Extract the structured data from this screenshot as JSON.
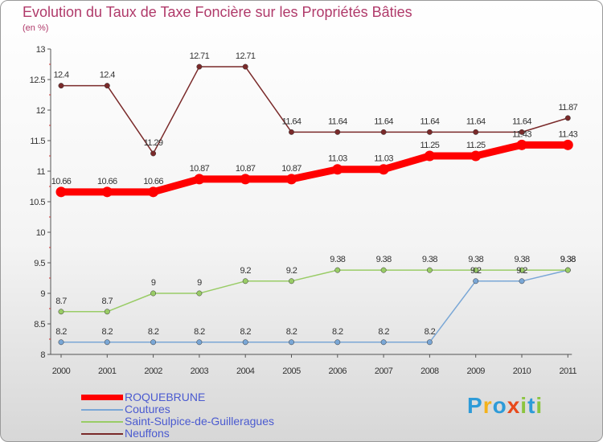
{
  "header": {
    "title": "Evolution du Taux de Taxe Foncière sur les Propriétés Bâties",
    "unit": "(en %)"
  },
  "logo": {
    "text": "Proxiti"
  },
  "chart_data": {
    "type": "line",
    "title": "Evolution du Taux de Taxe Foncière sur les Propriétés Bâties",
    "ylabel": "(en %)",
    "xlabel": "",
    "x": [
      "2000",
      "2001",
      "2002",
      "2003",
      "2004",
      "2005",
      "2006",
      "2007",
      "2008",
      "2009",
      "2010",
      "2011"
    ],
    "ylim": [
      8,
      13
    ],
    "yticks": [
      "8",
      "8.5",
      "9",
      "9.5",
      "10",
      "10.5",
      "11",
      "11.5",
      "12",
      "12.5",
      "13"
    ],
    "grid": false,
    "legend": "bottom-left",
    "series": [
      {
        "name": "ROQUEBRUNE",
        "color": "#ff0000",
        "values": [
          10.66,
          10.66,
          10.66,
          10.87,
          10.87,
          10.87,
          11.03,
          11.03,
          11.25,
          11.25,
          11.43,
          11.43
        ],
        "labels": [
          "10.66",
          "10.66",
          "10.66",
          "10.87",
          "10.87",
          "10.87",
          "11.03",
          "11.03",
          "11.25",
          "11.25",
          "11.43",
          "11.43"
        ]
      },
      {
        "name": "Coutures",
        "color": "#7aa7d6",
        "values": [
          8.2,
          8.2,
          8.2,
          8.2,
          8.2,
          8.2,
          8.2,
          8.2,
          8.2,
          9.2,
          9.2,
          9.38
        ],
        "labels": [
          "8.2",
          "8.2",
          "8.2",
          "8.2",
          "8.2",
          "8.2",
          "8.2",
          "8.2",
          "8.2",
          "9.2",
          "9.2",
          "9.38"
        ]
      },
      {
        "name": "Saint-Sulpice-de-Guilleragues",
        "color": "#99cc66",
        "values": [
          8.7,
          8.7,
          9,
          9,
          9.2,
          9.2,
          9.38,
          9.38,
          9.38,
          9.38,
          9.38,
          9.38
        ],
        "labels": [
          "8.7",
          "8.7",
          "9",
          "9",
          "9.2",
          "9.2",
          "9.38",
          "9.38",
          "9.38",
          "9.38",
          "9.38",
          "9.38"
        ]
      },
      {
        "name": "Neuffons",
        "color": "#7a2a2a",
        "values": [
          12.4,
          12.4,
          11.29,
          12.71,
          12.71,
          11.64,
          11.64,
          11.64,
          11.64,
          11.64,
          11.64,
          11.87
        ],
        "labels": [
          "12.4",
          "12.4",
          "11.29",
          "12.71",
          "12.71",
          "11.64",
          "11.64",
          "11.64",
          "11.64",
          "11.64",
          "11.64",
          "11.87"
        ]
      }
    ]
  }
}
